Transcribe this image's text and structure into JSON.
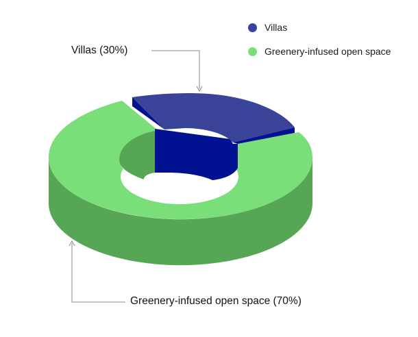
{
  "chart_data": {
    "type": "pie",
    "style": "3d-donut",
    "categories": [
      "Villas",
      "Greenery-infused open space"
    ],
    "values": [
      30,
      70
    ],
    "labels": [
      "Villas (30%)",
      "Greenery-infused open space (70%)"
    ],
    "legend": {
      "position": "top-right",
      "entries": [
        "Villas",
        "Greenery-infused open space"
      ]
    },
    "colors": {
      "Villas": {
        "top": "#394499",
        "side": "#001291",
        "inner": "#001291"
      },
      "Greenery-infused open space": {
        "top": "#7ade79",
        "side": "#57a656",
        "inner": "#57a656"
      }
    }
  }
}
